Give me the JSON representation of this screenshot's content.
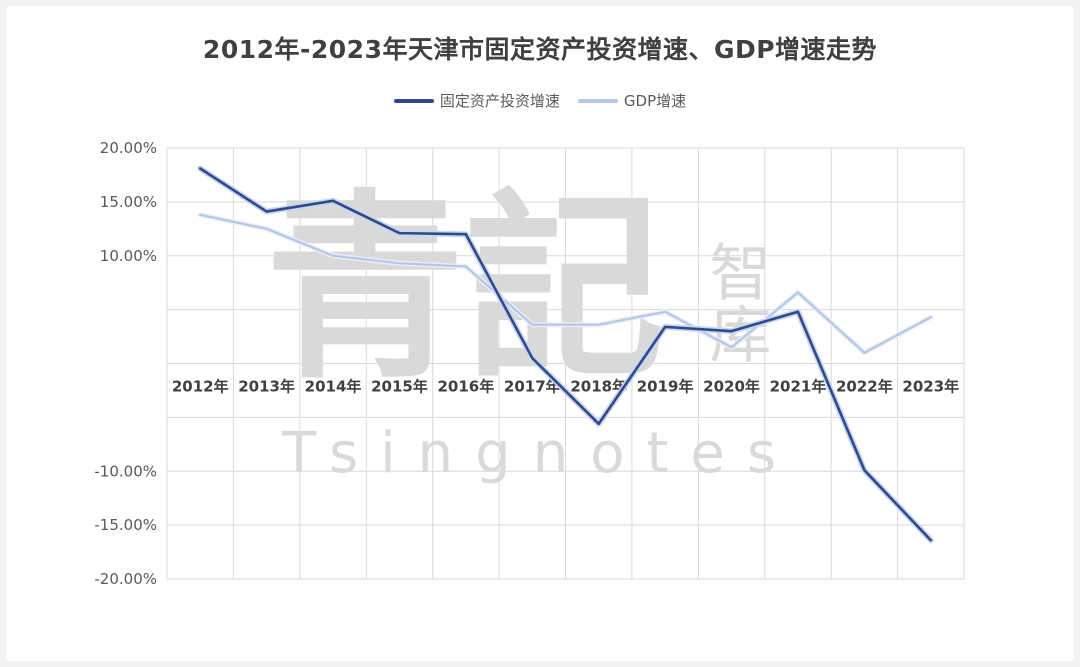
{
  "chart_data": {
    "type": "line",
    "title": "2012年-2023年天津市固定资产投资增速、GDP增速走势",
    "categories": [
      "2012年",
      "2013年",
      "2014年",
      "2015年",
      "2016年",
      "2017年",
      "2018年",
      "2019年",
      "2020年",
      "2021年",
      "2022年",
      "2023年"
    ],
    "series": [
      {
        "name": "固定资产投资增速",
        "color": "#2e4a8a",
        "values": [
          18.1,
          14.1,
          15.1,
          12.1,
          12.0,
          0.5,
          -5.6,
          3.4,
          3.0,
          4.8,
          -9.9,
          -16.4
        ]
      },
      {
        "name": "GDP增速",
        "color": "#b4c7e7",
        "values": [
          13.8,
          12.5,
          10.0,
          9.3,
          9.0,
          3.6,
          3.6,
          4.8,
          1.5,
          6.6,
          1.0,
          4.3
        ]
      }
    ],
    "ylim": [
      -20,
      20
    ],
    "y_ticks": [
      20,
      15,
      10,
      5,
      0,
      -5,
      -10,
      -15,
      -20
    ],
    "y_tick_labels": [
      "20.00%",
      "15.00%",
      "10.00%",
      "",
      "",
      "",
      "-10.00%",
      "-15.00%",
      "-20.00%"
    ],
    "grid": true,
    "legend_position": "top-center",
    "xlabel": "",
    "ylabel": ""
  },
  "watermark": {
    "main": "青記",
    "side": "智库",
    "latin": "Tsingnotes"
  }
}
